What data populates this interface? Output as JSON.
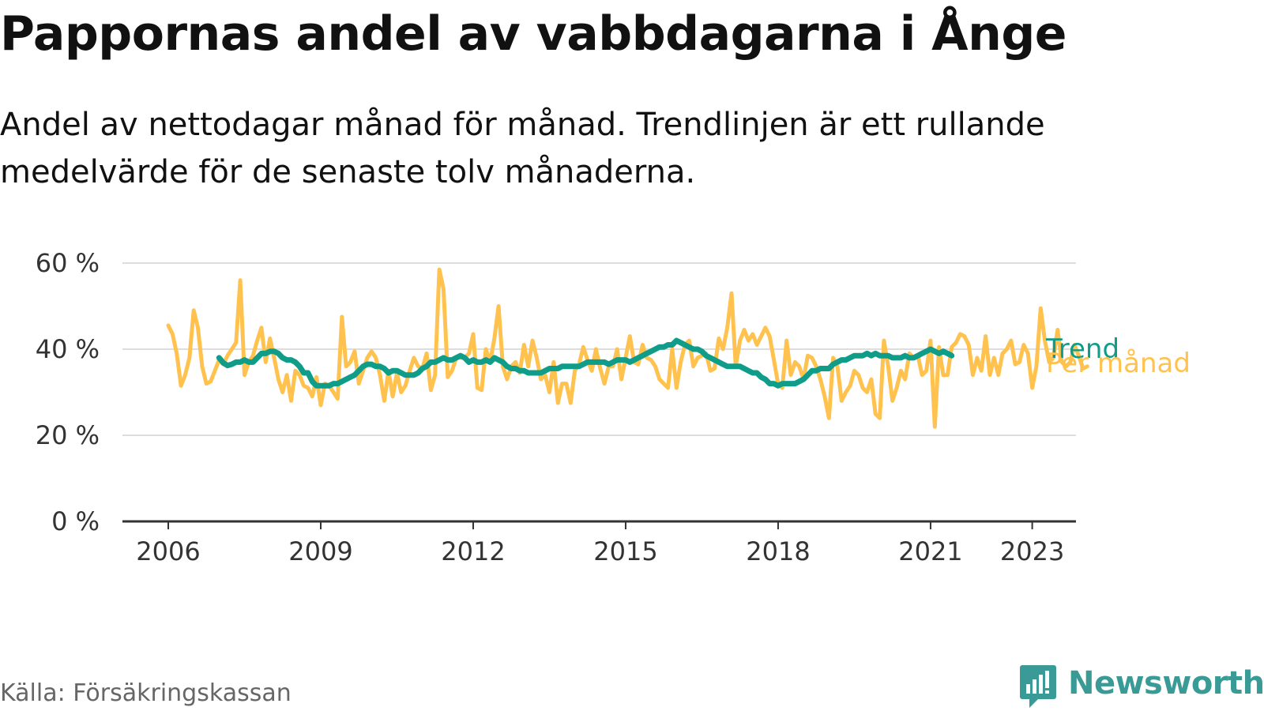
{
  "title": "Pappornas andel av vabbdagarna i Ånge",
  "subtitle": "Andel av nettodagar månad för månad. Trendlinjen är ett rullande medelvärde för de senaste tolv månaderna.",
  "source": "Källa: Försäkringskassan",
  "brand": {
    "name": "Newsworthy",
    "icon": "newsworthy-chart-bubble-icon",
    "color": "#3a9a96"
  },
  "chart_data": {
    "type": "line",
    "title": "Pappornas andel av vabbdagarna i Ånge",
    "ylim": [
      0,
      60
    ],
    "yticks": [
      0,
      20,
      40,
      60
    ],
    "ytick_labels": [
      "0 %",
      "20 %",
      "40 %",
      "60 %"
    ],
    "x_start": 2006.0,
    "x_step": 0.08333,
    "xticks": [
      2006,
      2009,
      2012,
      2015,
      2018,
      2021,
      2023
    ],
    "xtick_labels": [
      "2006",
      "2009",
      "2012",
      "2015",
      "2018",
      "2021",
      "2023"
    ],
    "grid": true,
    "legend": "direct labels at line ends",
    "series": [
      {
        "name": "Per månad",
        "color": "#ffc24e",
        "values": [
          45.5,
          43.5,
          39,
          31.5,
          34,
          38,
          49,
          45,
          36,
          32,
          32.5,
          35,
          37.5,
          36.5,
          38.5,
          40,
          41.5,
          56,
          34,
          37,
          38.5,
          42,
          45,
          37,
          42.5,
          38,
          33,
          30,
          34,
          28,
          35,
          34,
          31.5,
          31,
          29,
          33.5,
          27,
          32,
          31.5,
          30,
          28.5,
          47.5,
          36,
          37,
          39.5,
          32,
          35,
          38,
          39.5,
          38,
          34,
          28,
          35,
          29,
          34.5,
          30,
          31.5,
          35,
          38,
          36,
          35.5,
          39,
          30.5,
          34,
          58.5,
          54,
          33.5,
          35,
          38,
          38,
          38,
          39,
          43.5,
          31,
          30.5,
          40,
          37,
          42.5,
          50,
          36,
          33,
          36,
          37,
          34.5,
          41,
          36,
          42,
          38,
          33,
          34,
          30,
          37,
          27.5,
          32,
          32,
          27.5,
          35,
          36.5,
          40.5,
          37.5,
          35,
          40,
          35.5,
          32,
          36,
          36,
          40,
          33,
          38,
          43,
          37,
          36.5,
          41,
          38,
          37.5,
          36,
          33,
          32,
          31,
          40,
          31,
          37,
          41,
          42,
          36,
          38,
          38.5,
          39,
          35,
          35.5,
          42.5,
          40,
          45,
          53,
          36,
          42,
          44.5,
          42,
          43.5,
          41,
          43,
          45,
          43,
          37.5,
          32,
          31,
          42,
          34,
          37,
          36,
          33,
          38.5,
          38,
          36,
          33,
          29,
          24,
          38,
          36,
          28,
          30,
          31.5,
          35,
          34,
          31,
          30,
          33,
          25,
          24,
          42,
          36,
          28,
          31,
          35,
          33,
          39,
          38,
          38.5,
          34,
          35,
          42,
          22,
          40.5,
          34,
          34,
          40.5,
          41.5,
          43.5,
          43,
          41,
          34,
          38,
          35,
          43,
          34,
          38,
          34,
          39,
          40,
          42,
          36.5,
          37,
          41,
          39,
          31,
          36,
          49.5,
          42,
          37,
          38,
          44.5,
          37,
          36,
          37,
          41,
          38.5,
          35.5,
          36
        ]
      },
      {
        "name": "Trend",
        "color": "#0f9d8a",
        "offset": 12,
        "values": [
          38,
          36.8,
          36.2,
          36.5,
          37,
          37,
          37.5,
          37,
          37,
          38,
          39,
          39,
          39.5,
          39.5,
          39,
          38,
          37.5,
          37.5,
          37,
          36,
          34.5,
          34.5,
          32.5,
          31.5,
          31.5,
          31.5,
          31.5,
          32,
          32,
          32.5,
          33,
          33.5,
          34,
          35,
          36,
          36.5,
          36.5,
          36,
          36,
          35.5,
          34.5,
          35,
          35,
          34.5,
          34,
          34,
          34,
          34.5,
          35.5,
          36,
          37,
          37,
          37.5,
          38,
          37.5,
          37.5,
          38,
          38.5,
          38,
          37,
          37.5,
          37,
          37,
          37.5,
          37,
          38,
          37.5,
          37,
          36,
          35.5,
          35.5,
          35,
          35,
          34.5,
          34.5,
          34.5,
          34.5,
          35,
          35.5,
          35.5,
          35.5,
          36,
          36,
          36,
          36,
          36,
          36.5,
          37,
          37,
          37,
          37,
          37,
          36.5,
          37,
          37.5,
          37.5,
          37.5,
          37,
          37.5,
          38,
          38.5,
          39,
          39.5,
          40,
          40.5,
          40.5,
          41,
          41,
          42,
          41.5,
          41,
          40.5,
          40,
          40,
          39.5,
          38.5,
          38,
          37.5,
          37,
          36.5,
          36,
          36,
          36,
          36,
          35.5,
          35,
          34.5,
          34.5,
          33.5,
          33,
          32,
          32,
          31.5,
          32,
          32,
          32,
          32,
          32.5,
          33,
          34,
          35,
          35,
          35.5,
          35.5,
          35.5,
          36.5,
          37,
          37.5,
          37.5,
          38,
          38.5,
          38.5,
          38.5,
          39,
          38.5,
          39,
          38.5,
          38.5,
          38.5,
          38,
          38,
          38,
          38.5,
          38,
          38,
          38.5,
          39,
          39.5,
          40,
          39.5,
          39,
          39.5,
          39,
          38.5
        ]
      }
    ]
  }
}
